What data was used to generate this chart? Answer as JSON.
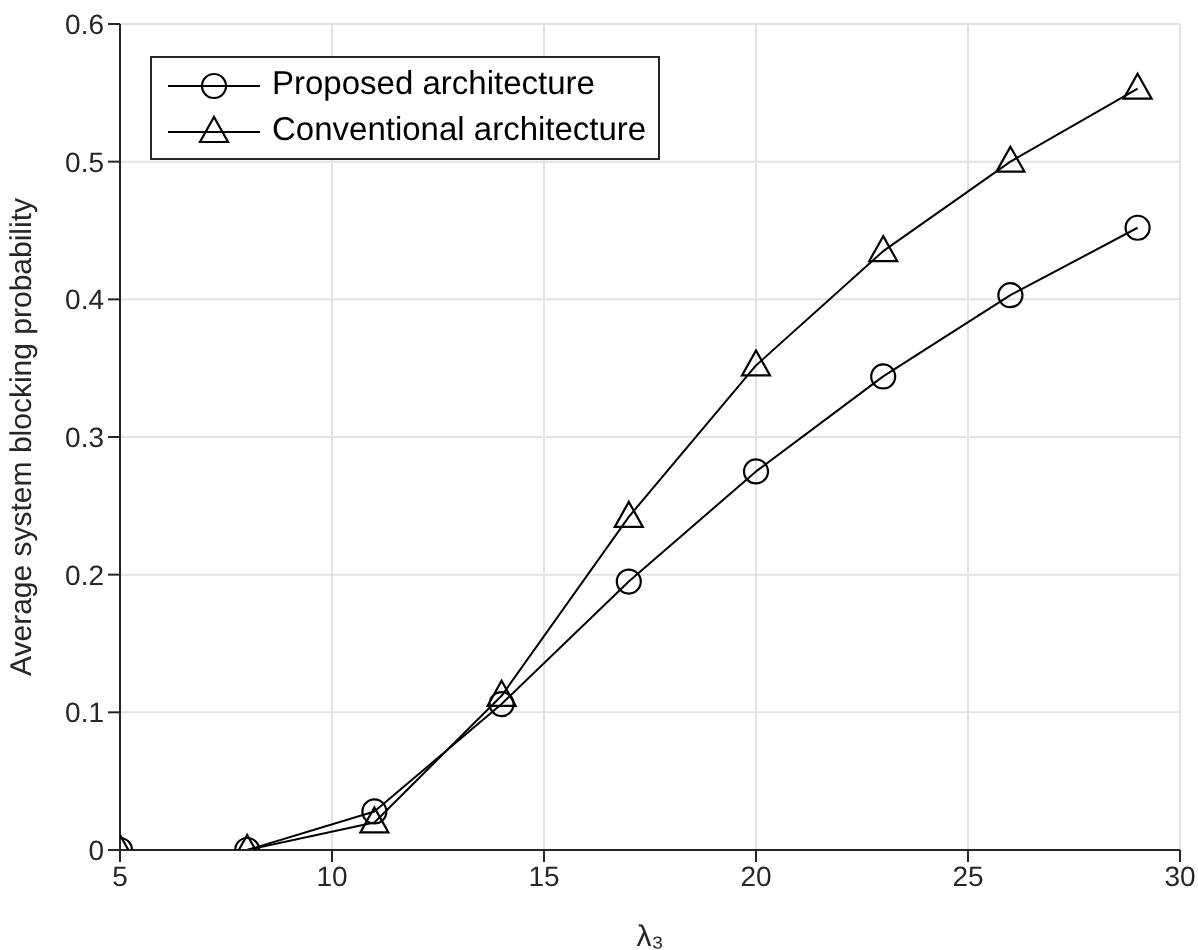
{
  "chart_data": {
    "type": "line",
    "xlabel": "λ₃",
    "ylabel": "Average system blocking probability",
    "x": [
      5,
      8,
      11,
      14,
      17,
      20,
      23,
      26,
      29
    ],
    "series": [
      {
        "name": "Proposed architecture",
        "color": "#000000",
        "marker": "circle",
        "values": [
          0,
          0,
          0.028,
          0.106,
          0.195,
          0.275,
          0.344,
          0.403,
          0.452
        ]
      },
      {
        "name": "Conventional architecture",
        "color": "#000000",
        "marker": "triangle",
        "values": [
          0,
          0,
          0.02,
          0.112,
          0.242,
          0.352,
          0.435,
          0.5,
          0.553
        ]
      }
    ],
    "xlim": [
      5,
      30
    ],
    "ylim": [
      0,
      0.6
    ],
    "xticks": [
      5,
      10,
      15,
      20,
      25,
      30
    ],
    "yticks": [
      0,
      0.1,
      0.2,
      0.3,
      0.4,
      0.5,
      0.6
    ],
    "grid": true,
    "legend": "top left",
    "line_style": "solid"
  }
}
